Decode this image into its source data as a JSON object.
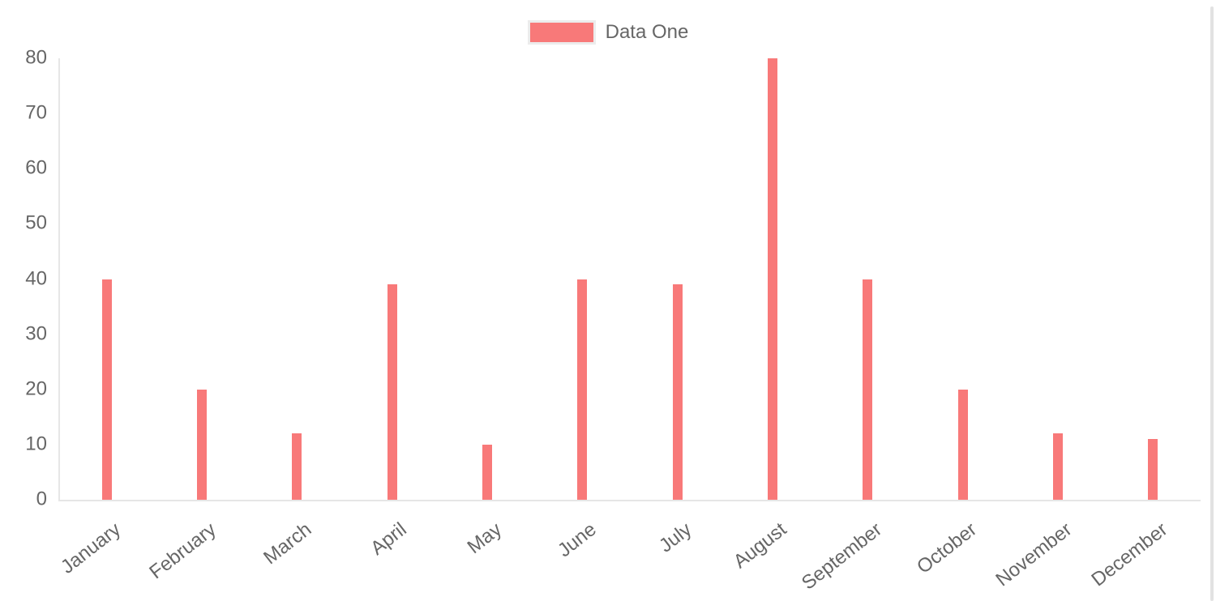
{
  "legend": {
    "items": [
      {
        "label": "Data One"
      }
    ]
  },
  "chart_data": {
    "type": "bar",
    "title": "",
    "xlabel": "",
    "ylabel": "",
    "categories": [
      "January",
      "February",
      "March",
      "April",
      "May",
      "June",
      "July",
      "August",
      "September",
      "October",
      "November",
      "December"
    ],
    "series": [
      {
        "name": "Data One",
        "color": "#f87979",
        "values": [
          40,
          20,
          12,
          39,
          10,
          40,
          39,
          80,
          40,
          20,
          12,
          11
        ]
      }
    ],
    "ylim": [
      0,
      80
    ],
    "yticks": [
      0,
      10,
      20,
      30,
      40,
      50,
      60,
      70,
      80
    ],
    "x_tick_rotation_deg": -38,
    "legend_position": "top",
    "grid": false,
    "axis_color": "#e6e6e6",
    "text_color": "#666666"
  }
}
